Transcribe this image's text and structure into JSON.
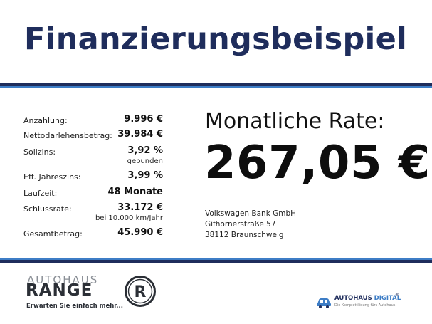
{
  "header": {
    "title": "Finanzierungsbeispiel"
  },
  "details": [
    {
      "label": "Anzahlung:",
      "value": "9.996 €"
    },
    {
      "label": "Nettodarlehensbetrag:",
      "value": "39.984 €"
    },
    {
      "label": "Sollzins:",
      "value": "3,92 %",
      "sub": "gebunden"
    },
    {
      "label": "Eff. Jahreszins:",
      "value": "3,99 %"
    },
    {
      "label": "Laufzeit:",
      "value": "48 Monate"
    },
    {
      "label": "Schlussrate:",
      "value": "33.172 €",
      "sub": "bei 10.000 km/Jahr"
    },
    {
      "label": "Gesamtbetrag:",
      "value": "45.990 €"
    }
  ],
  "rate": {
    "label": "Monatliche Rate:",
    "value": "267,05 €"
  },
  "bank": {
    "name": "Volkswagen Bank GmbH",
    "street": "Gifhornerstraße 57",
    "city": "38112 Braunschweig"
  },
  "footer": {
    "logo_range": {
      "top": "AUTOHAUS",
      "main": "RANGE",
      "tagline": "Erwarten Sie einfach mehr..."
    },
    "logo_r": {
      "letter": "R"
    },
    "logo_digital": {
      "name_a": "AUTOHAUS",
      "name_b": "DIGITAL",
      "reg": "®",
      "tagline": "Die Komplettlösung fürs Autohaus"
    }
  },
  "colors": {
    "navy": "#1f2d5c",
    "blue": "#3d7dc6"
  }
}
